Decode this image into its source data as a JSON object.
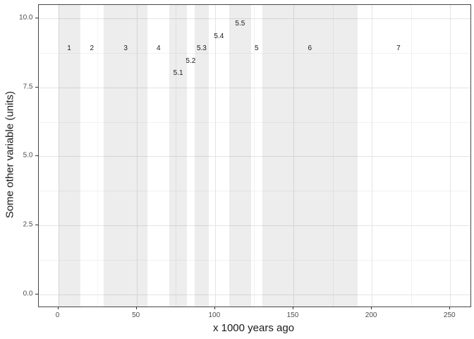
{
  "chart_data": {
    "type": "interval-bands",
    "title": "",
    "xlabel": "x 1000 years ago",
    "ylabel": "Some other variable (units)",
    "xlim": [
      -12.6,
      262.7
    ],
    "ylim": [
      -0.44,
      10.49
    ],
    "x_major_ticks": [
      0,
      50,
      100,
      150,
      200,
      250
    ],
    "x_minor_ticks": [
      25,
      75,
      125,
      175,
      225
    ],
    "y_major_ticks": [
      {
        "value": 0,
        "label": "0.0"
      },
      {
        "value": 2.5,
        "label": "2.5"
      },
      {
        "value": 5,
        "label": "5.0"
      },
      {
        "value": 7.5,
        "label": "7.5"
      },
      {
        "value": 10,
        "label": "10.0"
      }
    ],
    "y_minor_ticks": [
      1.25,
      3.75,
      6.25,
      8.75
    ],
    "grid": true,
    "legend": false,
    "bands": [
      {
        "stage": "1",
        "from": 0,
        "to": 14,
        "shaded": true,
        "label_x": 7,
        "label_y": 8.9
      },
      {
        "stage": "2",
        "from": 14,
        "to": 29,
        "shaded": false,
        "label_x": 21.5,
        "label_y": 8.9
      },
      {
        "stage": "3",
        "from": 29,
        "to": 57,
        "shaded": true,
        "label_x": 43,
        "label_y": 8.9
      },
      {
        "stage": "4",
        "from": 57,
        "to": 71,
        "shaded": false,
        "label_x": 64,
        "label_y": 8.9
      },
      {
        "stage": "5.1",
        "from": 71,
        "to": 82,
        "shaded": true,
        "label_x": 76.5,
        "label_y": 8.0
      },
      {
        "stage": "5.2",
        "from": 82,
        "to": 87,
        "shaded": false,
        "label_x": 84.5,
        "label_y": 8.45
      },
      {
        "stage": "5.3",
        "from": 87,
        "to": 96,
        "shaded": true,
        "label_x": 91.5,
        "label_y": 8.9
      },
      {
        "stage": "5.4",
        "from": 96,
        "to": 109,
        "shaded": false,
        "label_x": 102.5,
        "label_y": 9.35
      },
      {
        "stage": "5.5",
        "from": 109,
        "to": 123,
        "shaded": true,
        "label_x": 116,
        "label_y": 9.8
      },
      {
        "stage": "5",
        "from": 123,
        "to": 130,
        "shaded": false,
        "label_x": 126.5,
        "label_y": 8.9
      },
      {
        "stage": "6",
        "from": 130,
        "to": 191,
        "shaded": true,
        "label_x": 160.5,
        "label_y": 8.9
      },
      {
        "stage": "7",
        "from": 191,
        "to": 243,
        "shaded": false,
        "label_x": 217,
        "label_y": 8.9
      }
    ],
    "colors": {
      "background": "#ffffff",
      "panel_border": "#474747",
      "band_fill": "rgba(26,26,26,0.08)",
      "grid_major": "#e4e4e4",
      "grid_minor": "#f2f2f2",
      "tick_mark": "#333333",
      "tick_label": "#4d4d4d",
      "stage_label": "#1a1a1a"
    }
  }
}
